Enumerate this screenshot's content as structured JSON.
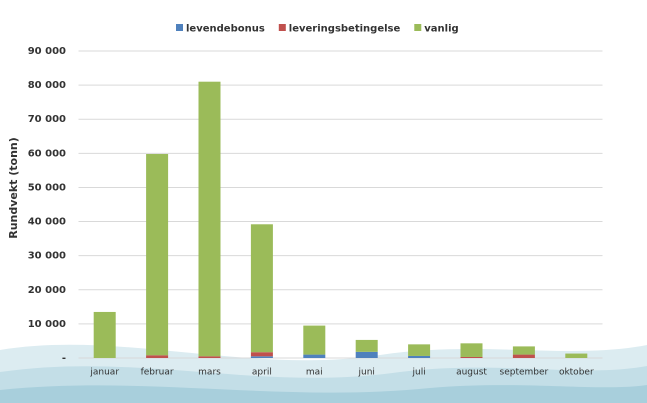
{
  "chart_data": {
    "type": "stacked_bar",
    "y_label": "Rundvekt (tonn)",
    "categories": [
      "januar",
      "februar",
      "mars",
      "april",
      "mai",
      "juni",
      "juli",
      "august",
      "september",
      "oktober"
    ],
    "series": [
      {
        "name": "levendebonus",
        "color": "#4f81bd",
        "values": [
          0,
          0,
          0,
          500,
          1000,
          1800,
          600,
          0,
          0,
          0
        ]
      },
      {
        "name": "leveringsbetingelse",
        "color": "#c0504d",
        "values": [
          0,
          800,
          500,
          1200,
          0,
          0,
          0,
          300,
          1000,
          0
        ]
      },
      {
        "name": "vanlig",
        "color": "#9bbb59",
        "values": [
          13500,
          59000,
          80500,
          37500,
          8500,
          3500,
          3400,
          4000,
          2400,
          1300
        ]
      }
    ],
    "ylim": [
      0,
      90000
    ],
    "yticks": [
      {
        "value": 0,
        "label": "-"
      },
      {
        "value": 10000,
        "label": "10 000"
      },
      {
        "value": 20000,
        "label": "20 000"
      },
      {
        "value": 30000,
        "label": "30 000"
      },
      {
        "value": 40000,
        "label": "40 000"
      },
      {
        "value": 50000,
        "label": "50 000"
      },
      {
        "value": 60000,
        "label": "60 000"
      },
      {
        "value": 70000,
        "label": "70 000"
      },
      {
        "value": 80000,
        "label": "80 000"
      },
      {
        "value": 90000,
        "label": "90 000"
      }
    ],
    "grid": true,
    "legend": "top"
  }
}
